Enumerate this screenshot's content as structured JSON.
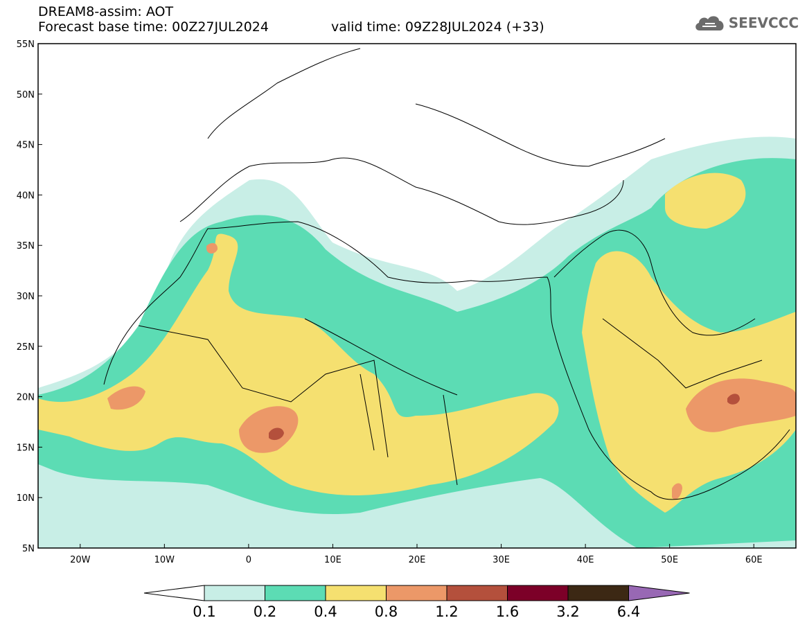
{
  "header": {
    "title": "DREAM8-assim: AOT",
    "base_time": "Forecast base time: 00Z27JUL2024",
    "valid_time": "valid time: 09Z28JUL2024 (+33)"
  },
  "logo": {
    "text": "SEEVCCC",
    "icon": "cloud-icon"
  },
  "map": {
    "lon_range": [
      -25,
      65
    ],
    "lat_range": [
      5,
      55
    ],
    "lat_ticks": [
      "5N",
      "10N",
      "15N",
      "20N",
      "25N",
      "30N",
      "35N",
      "40N",
      "45N",
      "50N",
      "55N"
    ],
    "lon_ticks": [
      "20W",
      "10W",
      "0",
      "10E",
      "20E",
      "30E",
      "40E",
      "50E",
      "60E"
    ]
  },
  "colorbar": {
    "labels": [
      "0.1",
      "0.2",
      "0.4",
      "0.8",
      "1.2",
      "1.6",
      "3.2",
      "6.4"
    ],
    "colors": [
      "#ffffff",
      "#c8eee6",
      "#5cdcb4",
      "#f5e070",
      "#ec9868",
      "#b4503c",
      "#7c0028",
      "#3c2814",
      "#9868b4"
    ]
  }
}
